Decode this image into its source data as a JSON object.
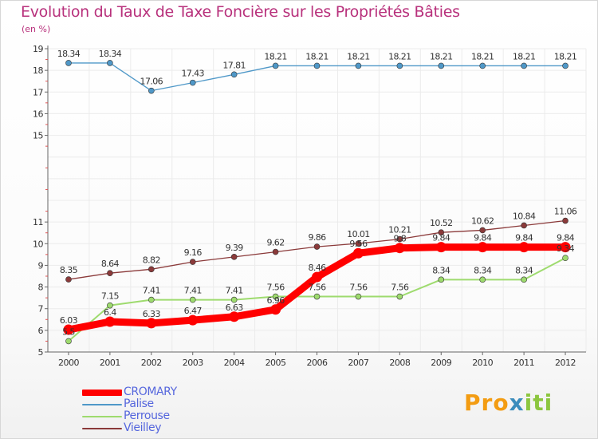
{
  "title": "Evolution du Taux de Taxe Foncière sur les Propriétés Bâties",
  "subtitle": "(en %)",
  "logo": {
    "part1": "Pro",
    "part2": "x",
    "part3": "iti",
    "colors": [
      "#f39c12",
      "#3c8dbc",
      "#8cc63f"
    ]
  },
  "chart_data": {
    "type": "line",
    "title": "Evolution du Taux de Taxe Foncière sur les Propriétés Bâties",
    "ylabel": "(en %)",
    "xlabel": "",
    "ylim": [
      5,
      19
    ],
    "yticks": [
      "5",
      "6",
      "7",
      "8",
      "9",
      "10",
      "11",
      "15",
      "16",
      "17",
      "18",
      "19"
    ],
    "ytick_values": [
      5,
      6,
      7,
      8,
      9,
      10,
      11,
      15,
      16,
      17,
      18,
      19
    ],
    "x": [
      "2000",
      "2001",
      "2002",
      "2003",
      "2004",
      "2005",
      "2006",
      "2007",
      "2008",
      "2009",
      "2010",
      "2011",
      "2012"
    ],
    "legend_position": "bottom-left",
    "grid": true,
    "series": [
      {
        "name": "CROMARY",
        "color": "#ff0000",
        "values": [
          6.03,
          6.4,
          6.33,
          6.47,
          6.63,
          6.96,
          8.46,
          9.56,
          9.8,
          9.84,
          9.84,
          9.84,
          9.84
        ],
        "labels": [
          "6.03",
          "6.4",
          "6.33",
          "6.47",
          "6.63",
          "6.96",
          "8.46",
          "9.56",
          "9.8",
          "9.84",
          "9.84",
          "9.84",
          "9.84"
        ]
      },
      {
        "name": "Palise",
        "color": "#4f98c8",
        "values": [
          18.34,
          18.34,
          17.06,
          17.43,
          17.81,
          18.21,
          18.21,
          18.21,
          18.21,
          18.21,
          18.21,
          18.21,
          18.21
        ],
        "labels": [
          "18.34",
          "18.34",
          "17.06",
          "17.43",
          "17.81",
          "18.21",
          "18.21",
          "18.21",
          "18.21",
          "18.21",
          "18.21",
          "18.21",
          "18.21"
        ]
      },
      {
        "name": "Perrouse",
        "color": "#9edb6e",
        "values": [
          5.5,
          7.15,
          7.41,
          7.41,
          7.41,
          7.56,
          7.56,
          7.56,
          7.56,
          8.34,
          8.34,
          8.34,
          9.34
        ],
        "labels": [
          "5.5",
          "7.15",
          "7.41",
          "7.41",
          "7.41",
          "7.56",
          "7.56",
          "7.56",
          "7.56",
          "8.34",
          "8.34",
          "8.34",
          "9.34"
        ]
      },
      {
        "name": "Vieilley",
        "color": "#8b3a3a",
        "values": [
          8.35,
          8.64,
          8.82,
          9.16,
          9.39,
          9.62,
          9.86,
          10.01,
          10.21,
          10.52,
          10.62,
          10.84,
          11.06
        ],
        "labels": [
          "8.35",
          "8.64",
          "8.82",
          "9.16",
          "9.39",
          "9.62",
          "9.86",
          "10.01",
          "10.21",
          "10.52",
          "10.62",
          "10.84",
          "11.06"
        ]
      }
    ]
  }
}
